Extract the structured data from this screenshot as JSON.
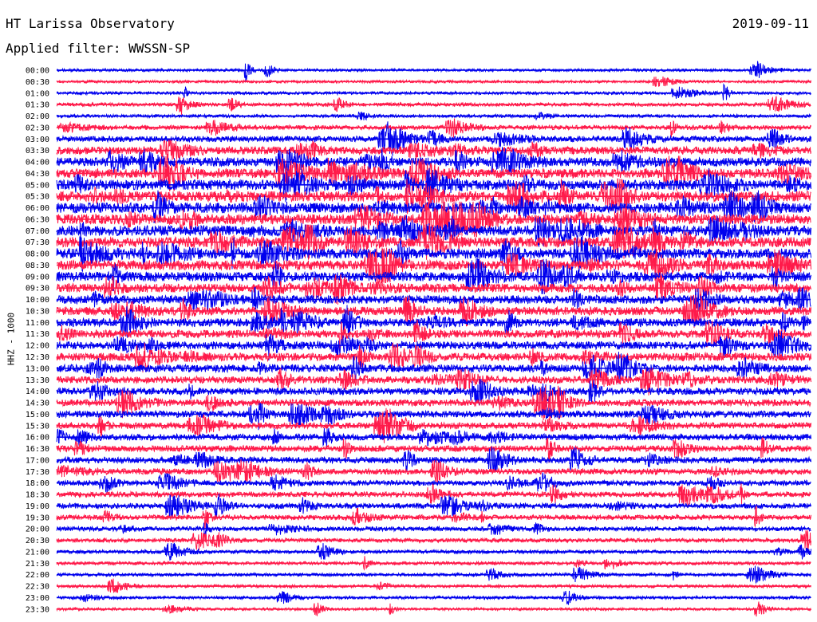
{
  "header": {
    "title": "HT Larissa Observatory",
    "date": "2019-09-11",
    "filter": "Applied filter: WWSSN-SP"
  },
  "chart_data": {
    "type": "helicorder",
    "ylabel": "HHZ - 1000",
    "row_times": [
      "00:00",
      "00:30",
      "01:00",
      "01:30",
      "02:00",
      "02:30",
      "03:00",
      "03:30",
      "04:00",
      "04:30",
      "05:00",
      "05:30",
      "06:00",
      "06:30",
      "07:00",
      "07:30",
      "08:00",
      "08:30",
      "09:00",
      "09:30",
      "10:00",
      "10:30",
      "11:00",
      "11:30",
      "12:00",
      "12:30",
      "13:00",
      "13:30",
      "14:00",
      "14:30",
      "15:00",
      "15:30",
      "16:00",
      "16:30",
      "17:00",
      "17:30",
      "18:00",
      "18:30",
      "19:00",
      "19:30",
      "20:00",
      "20:30",
      "21:00",
      "21:30",
      "22:00",
      "22:30",
      "23:00",
      "23:30"
    ],
    "trace_minutes_per_row": 30,
    "colors": {
      "even_rows": "#0000ee",
      "odd_rows": "#ff1a4a"
    },
    "activity_profile": [
      0.15,
      0.15,
      0.18,
      0.25,
      0.2,
      0.35,
      0.5,
      0.7,
      0.85,
      0.9,
      1.0,
      1.0,
      1.0,
      1.0,
      1.0,
      1.0,
      1.0,
      0.95,
      0.9,
      0.85,
      0.8,
      0.8,
      0.8,
      0.75,
      0.75,
      0.75,
      0.7,
      0.65,
      0.65,
      0.6,
      0.6,
      0.55,
      0.55,
      0.55,
      0.55,
      0.5,
      0.45,
      0.45,
      0.45,
      0.4,
      0.35,
      0.3,
      0.25,
      0.22,
      0.2,
      0.18,
      0.18,
      0.15
    ]
  }
}
